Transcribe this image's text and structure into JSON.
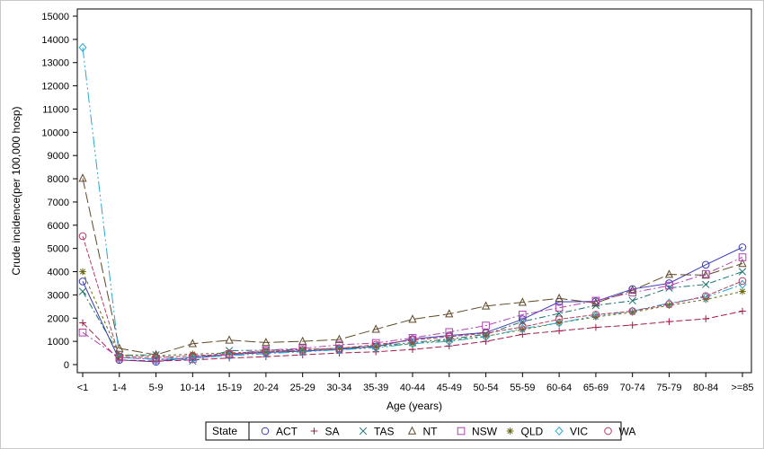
{
  "chart_data": {
    "type": "line",
    "xlabel": "Age (years)",
    "ylabel": "Crude incidence(per 100,000 hosp)",
    "ylim": [
      0,
      15000
    ],
    "yticks": [
      0,
      1000,
      2000,
      3000,
      4000,
      5000,
      6000,
      7000,
      8000,
      9000,
      10000,
      11000,
      12000,
      13000,
      14000,
      15000
    ],
    "categories": [
      "<1",
      "1-4",
      "5-9",
      "10-14",
      "15-19",
      "20-24",
      "25-29",
      "30-34",
      "35-39",
      "40-44",
      "45-49",
      "50-54",
      "55-59",
      "60-64",
      "65-69",
      "70-74",
      "75-79",
      "80-84",
      ">=85"
    ],
    "grid": false,
    "legend": {
      "title": "State",
      "position": "bottom"
    },
    "series": [
      {
        "name": "ACT",
        "color": "#3b3bb5",
        "marker": "circle",
        "dash": "",
        "values": [
          3580,
          200,
          120,
          330,
          430,
          520,
          580,
          650,
          780,
          1100,
          1250,
          1380,
          1950,
          2700,
          2720,
          3250,
          3500,
          4300,
          5050
        ]
      },
      {
        "name": "SA",
        "color": "#a01a4a",
        "marker": "plus",
        "dash": "7,3",
        "values": [
          1800,
          200,
          150,
          200,
          280,
          340,
          420,
          500,
          550,
          650,
          800,
          1000,
          1300,
          1450,
          1600,
          1700,
          1850,
          1970,
          2300
        ]
      },
      {
        "name": "TAS",
        "color": "#1a6e6e",
        "marker": "x",
        "dash": "7,3,2,3",
        "values": [
          3150,
          400,
          420,
          150,
          600,
          620,
          650,
          700,
          800,
          950,
          1100,
          1300,
          1850,
          2200,
          2550,
          2750,
          3300,
          3450,
          4000
        ]
      },
      {
        "name": "NT",
        "color": "#5f4727",
        "marker": "triangle",
        "dash": "12,4",
        "values": [
          8020,
          700,
          420,
          900,
          1050,
          950,
          1000,
          1080,
          1520,
          1950,
          2180,
          2520,
          2680,
          2850,
          2650,
          3200,
          3880,
          3850,
          4350
        ]
      },
      {
        "name": "NSW",
        "color": "#b040b0",
        "marker": "square",
        "dash": "8,3,2,3",
        "values": [
          1380,
          300,
          220,
          250,
          450,
          620,
          700,
          850,
          930,
          1150,
          1400,
          1680,
          2150,
          2450,
          2750,
          3100,
          3400,
          3900,
          4620
        ]
      },
      {
        "name": "QLD",
        "color": "#6a6a10",
        "marker": "star",
        "dash": "3,3",
        "values": [
          4000,
          400,
          380,
          450,
          500,
          560,
          620,
          700,
          770,
          900,
          1060,
          1220,
          1500,
          1800,
          2050,
          2250,
          2550,
          2800,
          3150
        ]
      },
      {
        "name": "VIC",
        "color": "#2aa8cc",
        "marker": "diamond",
        "dash": "12,3,2,3,2,3",
        "values": [
          13650,
          300,
          240,
          280,
          380,
          470,
          550,
          640,
          720,
          900,
          1000,
          1200,
          1550,
          1800,
          2100,
          2300,
          2650,
          2900,
          3450
        ]
      },
      {
        "name": "WA",
        "color": "#b83b5e",
        "marker": "circle",
        "dash": "5,2",
        "values": [
          5530,
          350,
          300,
          380,
          450,
          560,
          640,
          700,
          860,
          1050,
          1200,
          1350,
          1620,
          1950,
          2150,
          2300,
          2600,
          2950,
          3600
        ]
      }
    ]
  }
}
